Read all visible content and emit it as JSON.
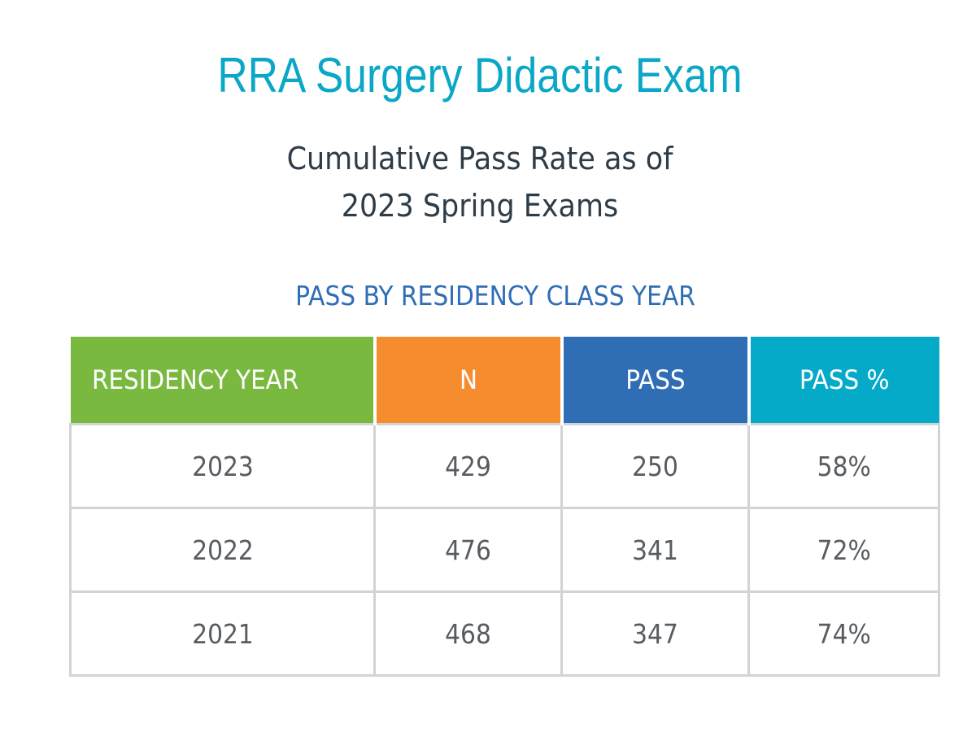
{
  "header": {
    "title": "RRA Surgery Didactic Exam",
    "subtitle_line1": "Cumulative Pass Rate as of",
    "subtitle_line2": "2023 Spring Exams",
    "section_label": "PASS BY RESIDENCY CLASS YEAR"
  },
  "colors": {
    "title": "#0aa7c6",
    "section_label": "#2f6db5",
    "col_residency_year": "#7ab93f",
    "col_n": "#f58d2e",
    "col_pass": "#2f6db5",
    "col_pass_pct": "#04aac8"
  },
  "chart_data": {
    "type": "table",
    "title": "PASS BY RESIDENCY CLASS YEAR",
    "columns": [
      "RESIDENCY YEAR",
      "N",
      "PASS",
      "PASS %"
    ],
    "rows": [
      [
        "2023",
        "429",
        "250",
        "58%"
      ],
      [
        "2022",
        "476",
        "341",
        "72%"
      ],
      [
        "2021",
        "468",
        "347",
        "74%"
      ]
    ]
  }
}
